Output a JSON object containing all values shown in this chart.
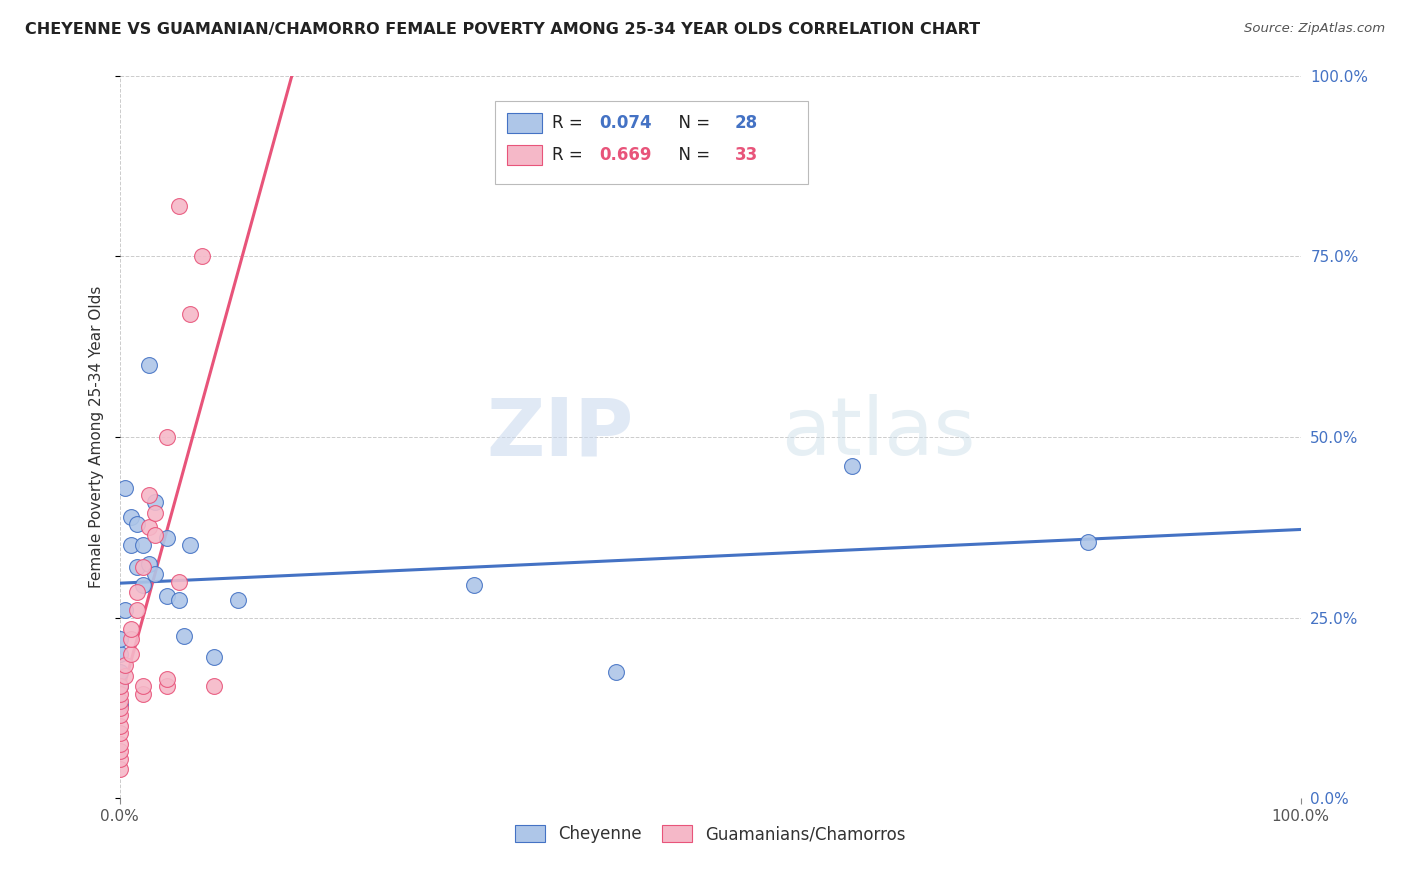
{
  "title": "CHEYENNE VS GUAMANIAN/CHAMORRO FEMALE POVERTY AMONG 25-34 YEAR OLDS CORRELATION CHART",
  "source": "Source: ZipAtlas.com",
  "ylabel": "Female Poverty Among 25-34 Year Olds",
  "watermark_zip": "ZIP",
  "watermark_atlas": "atlas",
  "cheyenne_R": 0.074,
  "cheyenne_N": 28,
  "guamanian_R": 0.669,
  "guamanian_N": 33,
  "xlim": [
    0,
    1.0
  ],
  "ylim": [
    0,
    1.0
  ],
  "yticks": [
    0.0,
    0.25,
    0.5,
    0.75,
    1.0
  ],
  "yticklabels": [
    "0.0%",
    "25.0%",
    "50.0%",
    "75.0%",
    "100.0%"
  ],
  "cheyenne_color": "#aec6e8",
  "guamanian_color": "#f5b8c8",
  "cheyenne_line_color": "#4472c4",
  "guamanian_line_color": "#e8547a",
  "cheyenne_x": [
    0.0,
    0.0,
    0.0,
    0.0,
    0.0,
    0.005,
    0.005,
    0.01,
    0.01,
    0.015,
    0.015,
    0.02,
    0.02,
    0.025,
    0.025,
    0.03,
    0.03,
    0.04,
    0.04,
    0.05,
    0.055,
    0.06,
    0.08,
    0.1,
    0.3,
    0.42,
    0.62,
    0.82
  ],
  "cheyenne_y": [
    0.175,
    0.2,
    0.22,
    0.155,
    0.13,
    0.43,
    0.26,
    0.39,
    0.35,
    0.38,
    0.32,
    0.35,
    0.295,
    0.325,
    0.6,
    0.41,
    0.31,
    0.36,
    0.28,
    0.275,
    0.225,
    0.35,
    0.195,
    0.275,
    0.295,
    0.175,
    0.46,
    0.355
  ],
  "guamanian_x": [
    0.0,
    0.0,
    0.0,
    0.0,
    0.0,
    0.0,
    0.0,
    0.0,
    0.0,
    0.0,
    0.0,
    0.005,
    0.005,
    0.01,
    0.01,
    0.01,
    0.015,
    0.015,
    0.02,
    0.02,
    0.02,
    0.025,
    0.025,
    0.03,
    0.03,
    0.04,
    0.04,
    0.04,
    0.05,
    0.05,
    0.06,
    0.07,
    0.08
  ],
  "guamanian_y": [
    0.04,
    0.055,
    0.065,
    0.075,
    0.09,
    0.1,
    0.115,
    0.125,
    0.135,
    0.145,
    0.155,
    0.17,
    0.185,
    0.2,
    0.22,
    0.235,
    0.26,
    0.285,
    0.145,
    0.155,
    0.32,
    0.375,
    0.42,
    0.365,
    0.395,
    0.155,
    0.165,
    0.5,
    0.3,
    0.82,
    0.67,
    0.75,
    0.155
  ],
  "background_color": "#ffffff",
  "grid_color": "#cccccc"
}
